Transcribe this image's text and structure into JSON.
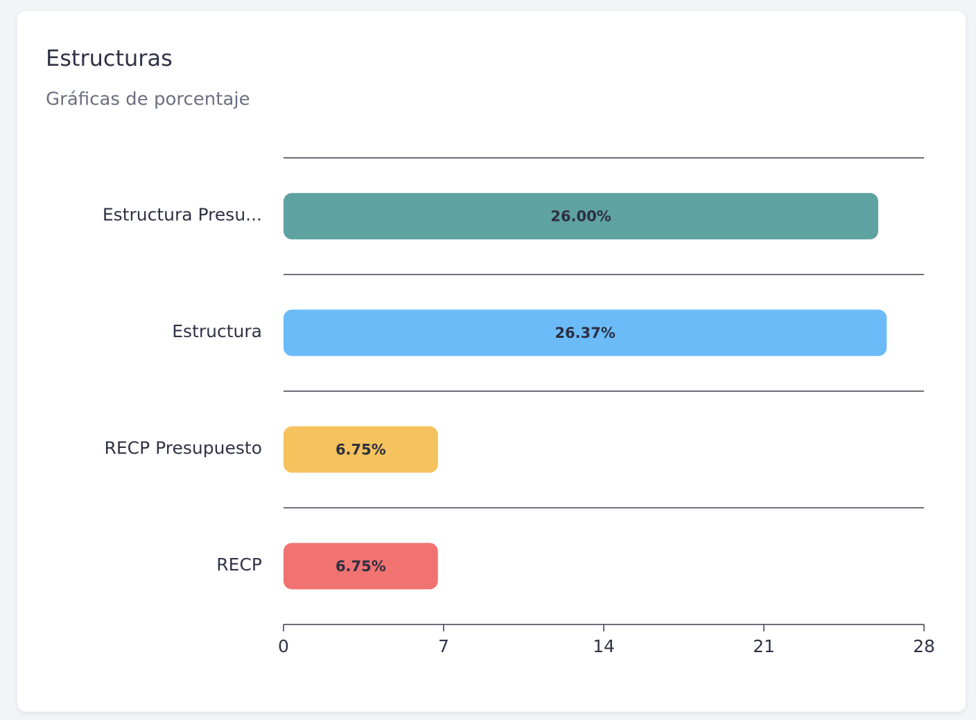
{
  "chart_data": {
    "type": "bar",
    "title": "Estructuras",
    "subtitle": "Gráficas de porcentaje",
    "categories": [
      "Estructura Presu...",
      "Estructura",
      "RECP Presupuesto",
      "RECP"
    ],
    "values": [
      26,
      26.37,
      6.75,
      6.75
    ],
    "value_labels": [
      "26.00%",
      "26.37%",
      "6.75%",
      "6.75%"
    ],
    "colors": [
      "#5fa2a2",
      "#6bbbf9",
      "#f5c25e",
      "#f07371"
    ],
    "xlim": [
      0,
      28
    ],
    "xticks": [
      0,
      7,
      14,
      21,
      28
    ]
  }
}
